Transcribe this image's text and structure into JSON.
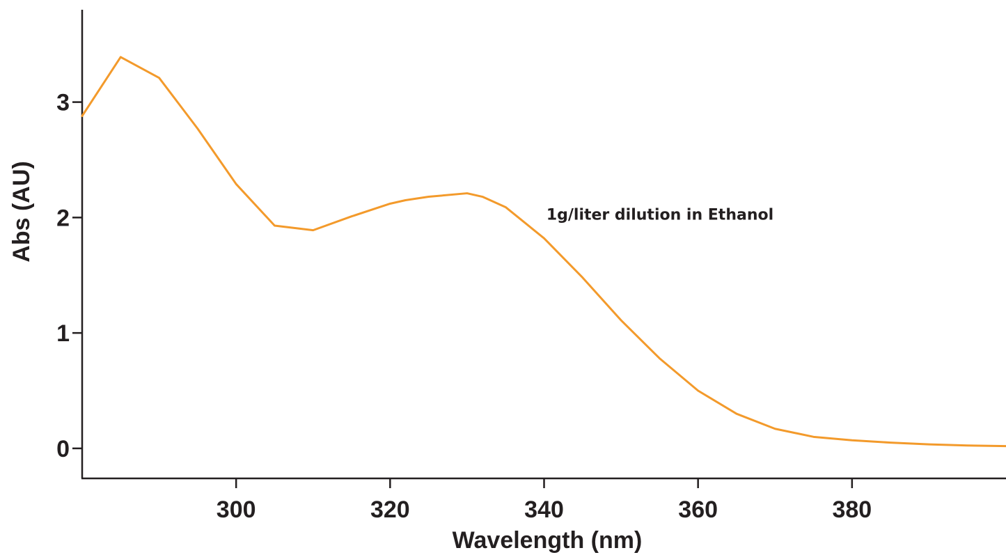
{
  "chart_data": {
    "type": "line",
    "xlabel": "Wavelength (nm)",
    "ylabel": "Abs (AU)",
    "xlim": [
      280,
      400
    ],
    "ylim": [
      -0.26,
      3.8
    ],
    "x_ticks": [
      300,
      320,
      340,
      360,
      380
    ],
    "y_ticks": [
      0,
      1,
      2,
      3
    ],
    "grid": false,
    "line_color": "#f39a2b",
    "series": [
      {
        "x": [
          280,
          285,
          290,
          295,
          300,
          305,
          310,
          315,
          320,
          322,
          325,
          330,
          332,
          335,
          340,
          345,
          350,
          355,
          360,
          365,
          370,
          375,
          380,
          385,
          390,
          395,
          400
        ],
        "y": [
          2.88,
          3.39,
          3.21,
          2.77,
          2.29,
          1.93,
          1.89,
          2.01,
          2.12,
          2.15,
          2.18,
          2.21,
          2.18,
          2.09,
          1.82,
          1.48,
          1.11,
          0.78,
          0.5,
          0.3,
          0.17,
          0.1,
          0.07,
          0.05,
          0.035,
          0.025,
          0.02
        ]
      }
    ],
    "annotations": [
      {
        "text": "1g/liter dilution in Ethanol",
        "x": 340.3,
        "y": 1.98
      }
    ]
  }
}
